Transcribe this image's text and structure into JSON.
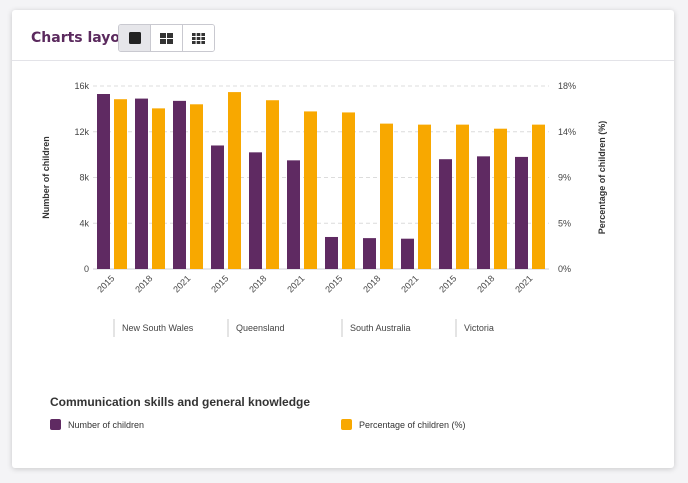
{
  "toolbar": {
    "title": "Charts layout:",
    "layout_options": [
      {
        "icon": "single-square-icon",
        "active": true
      },
      {
        "icon": "four-grid-icon",
        "active": false
      },
      {
        "icon": "nine-grid-icon",
        "active": false
      }
    ]
  },
  "colors": {
    "number": "#5f2a62",
    "percentage": "#f8a800",
    "brand_text": "#5b2a5e"
  },
  "chart_data": {
    "type": "bar",
    "title": "Communication skills and general knowledge",
    "categories": [
      "2015",
      "2018",
      "2021",
      "2015",
      "2018",
      "2021",
      "2015",
      "2018",
      "2021",
      "2015",
      "2018",
      "2021"
    ],
    "groups": [
      {
        "label": "New South Wales",
        "years": [
          "2015",
          "2018",
          "2021"
        ]
      },
      {
        "label": "Queensland",
        "years": [
          "2015",
          "2018",
          "2021"
        ]
      },
      {
        "label": "South Australia",
        "years": [
          "2015",
          "2018",
          "2021"
        ]
      },
      {
        "label": "Victoria",
        "years": [
          "2015",
          "2018",
          "2021"
        ]
      }
    ],
    "series": [
      {
        "name": "Number of children",
        "axis": "left",
        "values": [
          15300,
          14900,
          14700,
          10800,
          10200,
          9500,
          2800,
          2700,
          2650,
          9600,
          9850,
          9800
        ]
      },
      {
        "name": "Percentage of children (%)",
        "axis": "right",
        "values": [
          16.7,
          15.8,
          16.2,
          17.4,
          16.6,
          15.5,
          15.4,
          14.3,
          14.2,
          14.2,
          13.8,
          14.2
        ]
      }
    ],
    "ylabel": "Number of children",
    "y2label": "Percentage of children (%)",
    "ylim": [
      0,
      16000
    ],
    "yticks": [
      "0",
      "4k",
      "8k",
      "12k",
      "16k"
    ],
    "y2lim": [
      0,
      18
    ],
    "y2ticks": [
      "0%",
      "5%",
      "9%",
      "14%",
      "18%"
    ],
    "grid": true,
    "legend_position": "bottom"
  }
}
